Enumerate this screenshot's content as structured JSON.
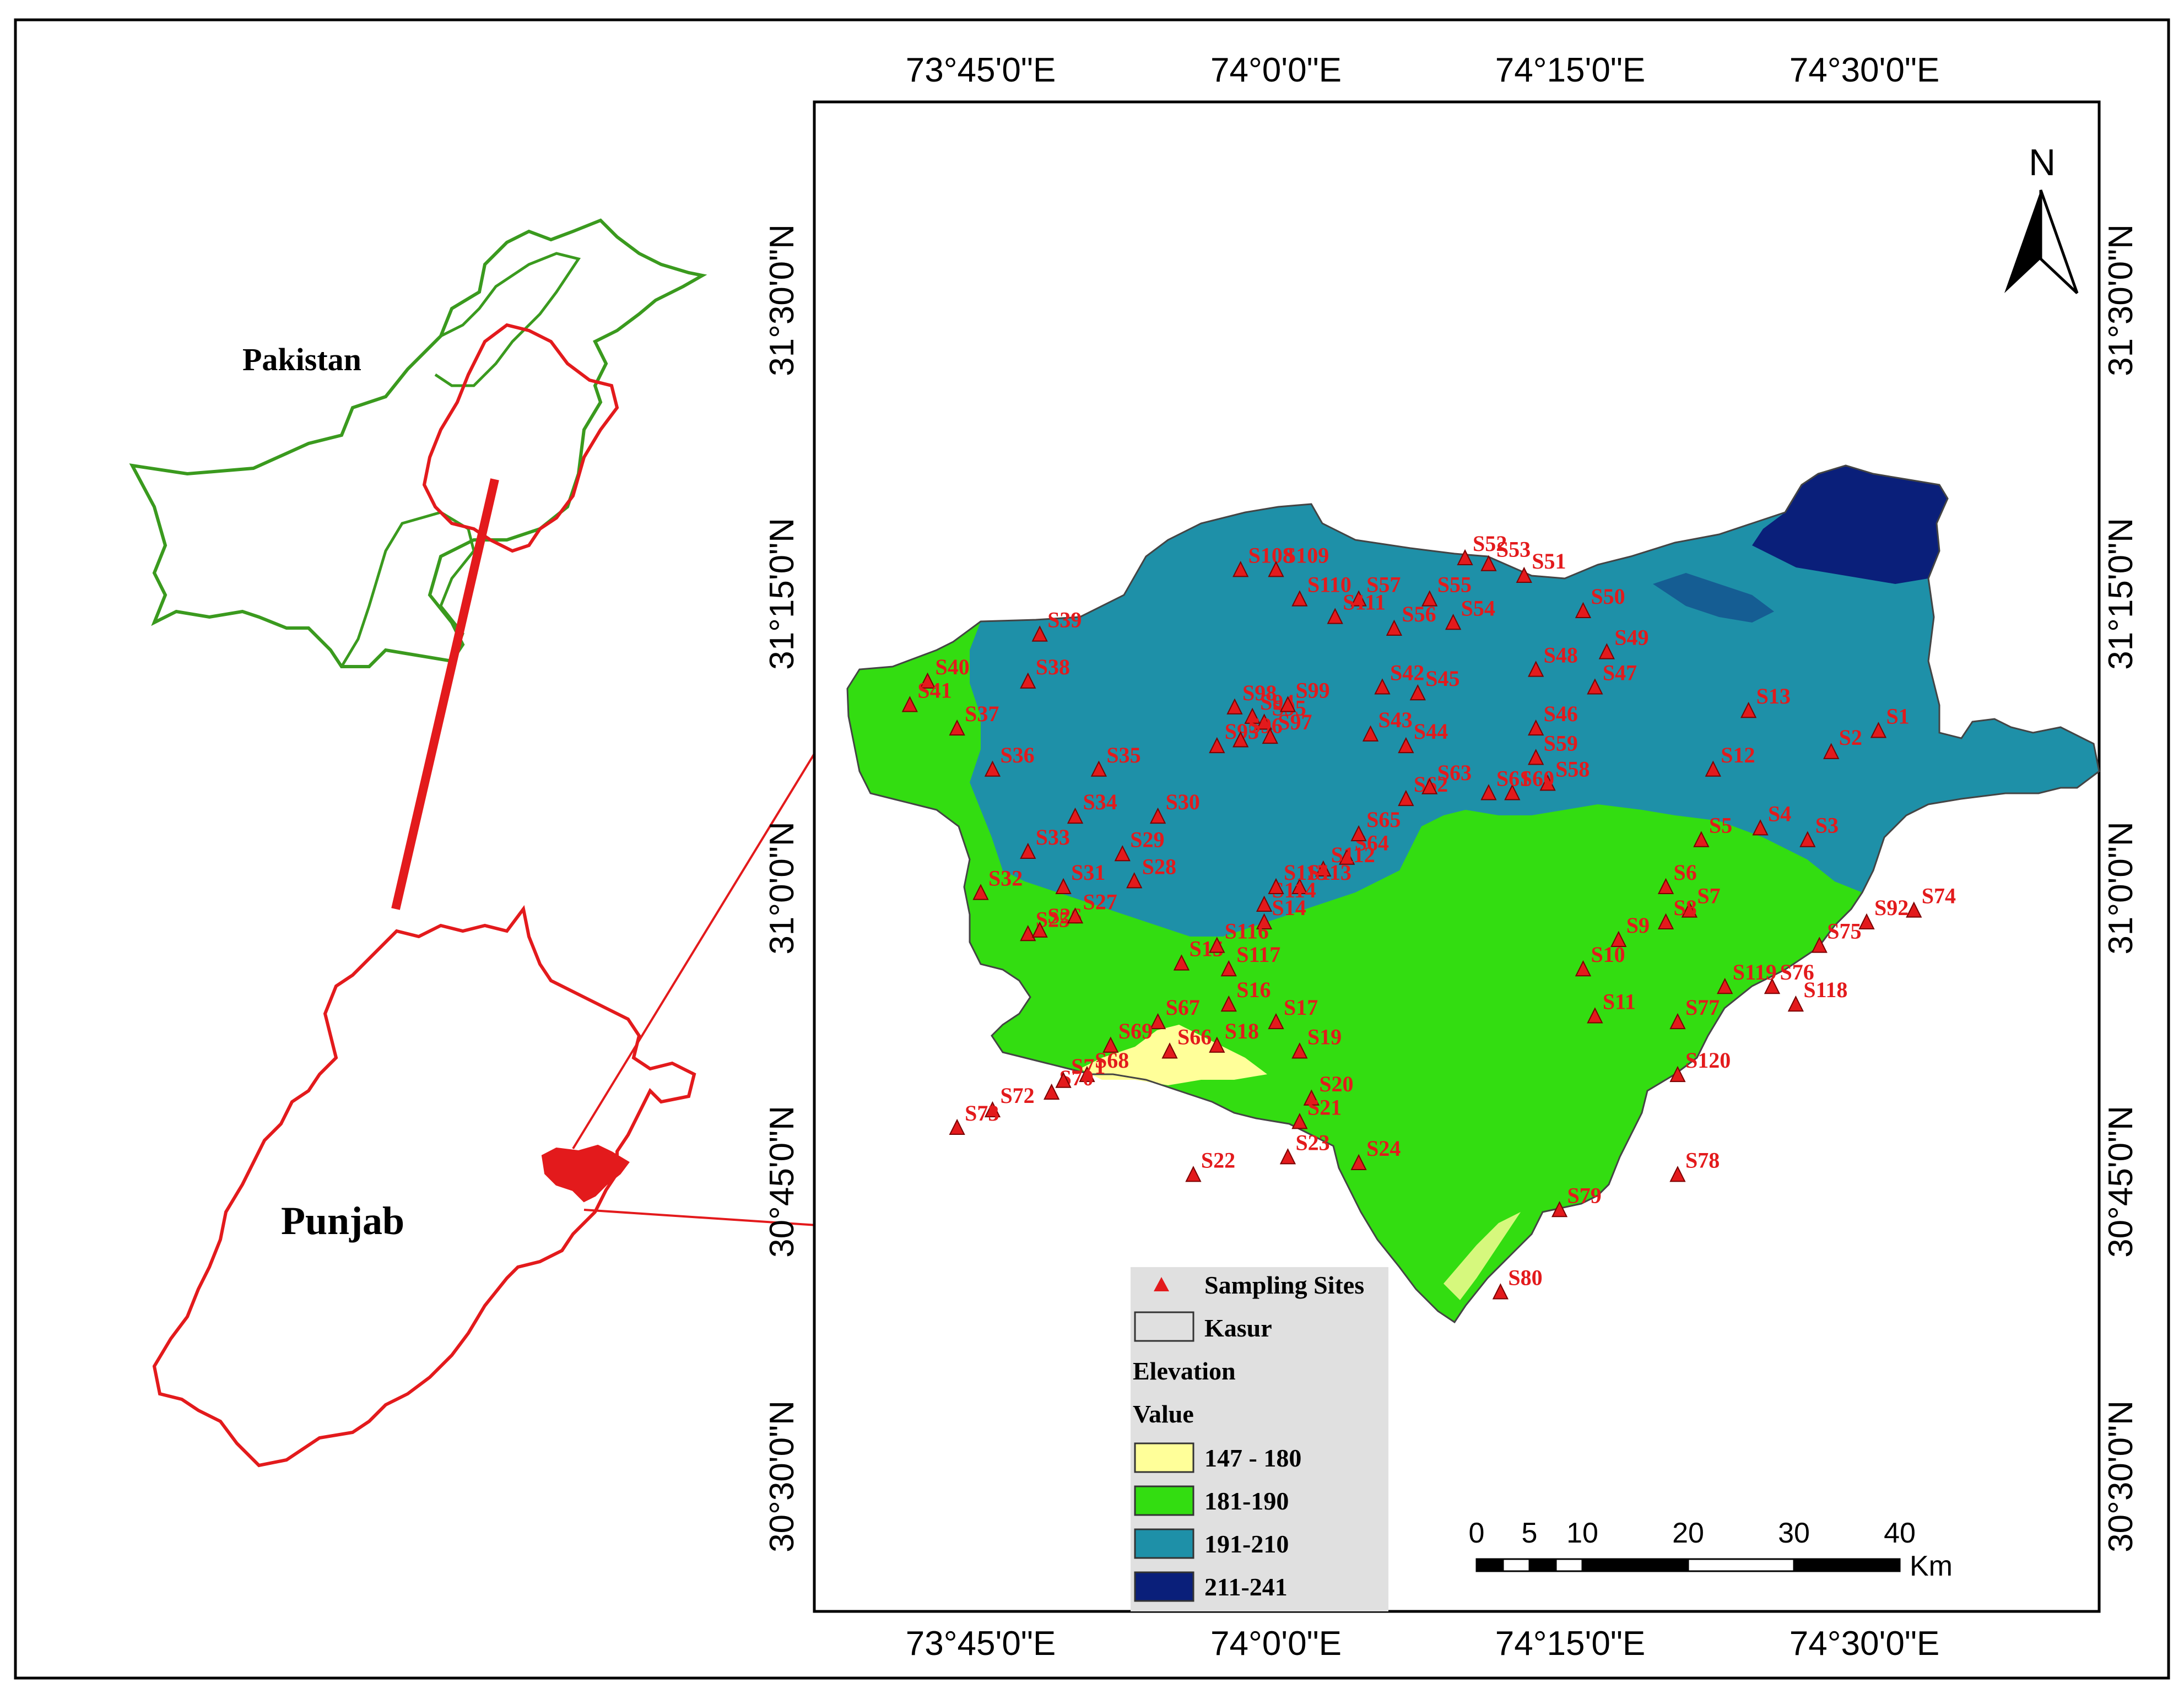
{
  "inset": {
    "country_label": "Pakistan",
    "province_label": "Punjab"
  },
  "coordinates": {
    "top": [
      "73°45'0\"E",
      "74°0'0\"E",
      "74°15'0\"E",
      "74°30'0\"E"
    ],
    "bottom": [
      "73°45'0\"E",
      "74°0'0\"E",
      "74°15'0\"E",
      "74°30'0\"E"
    ],
    "left": [
      "31°30'0\"N",
      "31°15'0\"N",
      "31°0'0\"N",
      "30°45'0\"N",
      "30°30'0\"N"
    ],
    "right": [
      "31°30'0\"N",
      "31°15'0\"N",
      "31°0'0\"N",
      "30°45'0\"N",
      "30°30'0\"N"
    ]
  },
  "north_arrow": {
    "label": "N"
  },
  "legend": {
    "sampling_sites": "Sampling Sites",
    "district": "Kasur",
    "elevation_title": "Elevation",
    "value_title": "Value",
    "classes": [
      {
        "label": "147 - 180",
        "color": "#ffff99"
      },
      {
        "label": "181-190",
        "color": "#33dd11"
      },
      {
        "label": "191-210",
        "color": "#1e90a8"
      },
      {
        "label": "211-241",
        "color": "#0a1f7a"
      }
    ]
  },
  "scale_bar": {
    "ticks": [
      "0",
      "5",
      "10",
      "20",
      "30",
      "40"
    ],
    "unit": "Km"
  },
  "colors": {
    "site_marker": "#e31a1c",
    "pakistan_outline": "#3a9a1e",
    "punjab_outline": "#e31a1c",
    "connector_line": "#e31a1c"
  },
  "sampling_sites": [
    {
      "id": "S1",
      "lon": 74.51,
      "lat": 31.133
    },
    {
      "id": "S2",
      "lon": 74.47,
      "lat": 31.115
    },
    {
      "id": "S3",
      "lon": 74.45,
      "lat": 31.04
    },
    {
      "id": "S4",
      "lon": 74.41,
      "lat": 31.05
    },
    {
      "id": "S5",
      "lon": 74.36,
      "lat": 31.04
    },
    {
      "id": "S6",
      "lon": 74.33,
      "lat": 31.0
    },
    {
      "id": "S7",
      "lon": 74.35,
      "lat": 30.98
    },
    {
      "id": "S8",
      "lon": 74.33,
      "lat": 30.97
    },
    {
      "id": "S9",
      "lon": 74.29,
      "lat": 30.955
    },
    {
      "id": "S10",
      "lon": 74.26,
      "lat": 30.93
    },
    {
      "id": "S11",
      "lon": 74.27,
      "lat": 30.89
    },
    {
      "id": "S12",
      "lon": 74.37,
      "lat": 31.1
    },
    {
      "id": "S13",
      "lon": 74.4,
      "lat": 31.15
    },
    {
      "id": "S14",
      "lon": 73.99,
      "lat": 30.97
    },
    {
      "id": "S15",
      "lon": 73.92,
      "lat": 30.935
    },
    {
      "id": "S16",
      "lon": 73.96,
      "lat": 30.9
    },
    {
      "id": "S17",
      "lon": 74.0,
      "lat": 30.885
    },
    {
      "id": "S18",
      "lon": 73.95,
      "lat": 30.865
    },
    {
      "id": "S19",
      "lon": 74.02,
      "lat": 30.86
    },
    {
      "id": "S20",
      "lon": 74.03,
      "lat": 30.82
    },
    {
      "id": "S21",
      "lon": 74.02,
      "lat": 30.8
    },
    {
      "id": "S22",
      "lon": 73.93,
      "lat": 30.755
    },
    {
      "id": "S23",
      "lon": 74.01,
      "lat": 30.77
    },
    {
      "id": "S24",
      "lon": 74.07,
      "lat": 30.765
    },
    {
      "id": "S25",
      "lon": 73.79,
      "lat": 30.96
    },
    {
      "id": "S26",
      "lon": 73.8,
      "lat": 30.963
    },
    {
      "id": "S27",
      "lon": 73.83,
      "lat": 30.975
    },
    {
      "id": "S28",
      "lon": 73.88,
      "lat": 31.005
    },
    {
      "id": "S29",
      "lon": 73.87,
      "lat": 31.028
    },
    {
      "id": "S30",
      "lon": 73.9,
      "lat": 31.06
    },
    {
      "id": "S31",
      "lon": 73.82,
      "lat": 31.0
    },
    {
      "id": "S32",
      "lon": 73.75,
      "lat": 30.995
    },
    {
      "id": "S33",
      "lon": 73.79,
      "lat": 31.03
    },
    {
      "id": "S34",
      "lon": 73.83,
      "lat": 31.06
    },
    {
      "id": "S35",
      "lon": 73.85,
      "lat": 31.1
    },
    {
      "id": "S36",
      "lon": 73.76,
      "lat": 31.1
    },
    {
      "id": "S37",
      "lon": 73.73,
      "lat": 31.135
    },
    {
      "id": "S38",
      "lon": 73.79,
      "lat": 31.175
    },
    {
      "id": "S39",
      "lon": 73.8,
      "lat": 31.215
    },
    {
      "id": "S40",
      "lon": 73.705,
      "lat": 31.175
    },
    {
      "id": "S41",
      "lon": 73.69,
      "lat": 31.155
    },
    {
      "id": "S42",
      "lon": 74.09,
      "lat": 31.17
    },
    {
      "id": "S43",
      "lon": 74.08,
      "lat": 31.13
    },
    {
      "id": "S44",
      "lon": 74.11,
      "lat": 31.12
    },
    {
      "id": "S45",
      "lon": 74.12,
      "lat": 31.165
    },
    {
      "id": "S46",
      "lon": 74.22,
      "lat": 31.135
    },
    {
      "id": "S47",
      "lon": 74.27,
      "lat": 31.17
    },
    {
      "id": "S48",
      "lon": 74.22,
      "lat": 31.185
    },
    {
      "id": "S49",
      "lon": 74.28,
      "lat": 31.2
    },
    {
      "id": "S50",
      "lon": 74.26,
      "lat": 31.235
    },
    {
      "id": "S51",
      "lon": 74.21,
      "lat": 31.265
    },
    {
      "id": "S52",
      "lon": 74.16,
      "lat": 31.28
    },
    {
      "id": "S53",
      "lon": 74.18,
      "lat": 31.275
    },
    {
      "id": "S54",
      "lon": 74.15,
      "lat": 31.225
    },
    {
      "id": "S55",
      "lon": 74.13,
      "lat": 31.245
    },
    {
      "id": "S56",
      "lon": 74.1,
      "lat": 31.22
    },
    {
      "id": "S57",
      "lon": 74.07,
      "lat": 31.245
    },
    {
      "id": "S58",
      "lon": 74.23,
      "lat": 31.088
    },
    {
      "id": "S59",
      "lon": 74.22,
      "lat": 31.11
    },
    {
      "id": "S60",
      "lon": 74.2,
      "lat": 31.08
    },
    {
      "id": "S61",
      "lon": 74.18,
      "lat": 31.08
    },
    {
      "id": "S62",
      "lon": 74.11,
      "lat": 31.075
    },
    {
      "id": "S63",
      "lon": 74.13,
      "lat": 31.085
    },
    {
      "id": "S64",
      "lon": 74.06,
      "lat": 31.025
    },
    {
      "id": "S65",
      "lon": 74.07,
      "lat": 31.045
    },
    {
      "id": "S66",
      "lon": 73.91,
      "lat": 30.86
    },
    {
      "id": "S67",
      "lon": 73.9,
      "lat": 30.885
    },
    {
      "id": "S68",
      "lon": 73.84,
      "lat": 30.84
    },
    {
      "id": "S69",
      "lon": 73.86,
      "lat": 30.865
    },
    {
      "id": "S70",
      "lon": 73.81,
      "lat": 30.825
    },
    {
      "id": "S71",
      "lon": 73.82,
      "lat": 30.835
    },
    {
      "id": "S72",
      "lon": 73.76,
      "lat": 30.81
    },
    {
      "id": "S73",
      "lon": 73.73,
      "lat": 30.795
    },
    {
      "id": "S74",
      "lon": 74.54,
      "lat": 30.98
    },
    {
      "id": "S75",
      "lon": 74.46,
      "lat": 30.95
    },
    {
      "id": "S76",
      "lon": 74.42,
      "lat": 30.915
    },
    {
      "id": "S77",
      "lon": 74.34,
      "lat": 30.885
    },
    {
      "id": "S78",
      "lon": 74.34,
      "lat": 30.755
    },
    {
      "id": "S79",
      "lon": 74.24,
      "lat": 30.725
    },
    {
      "id": "S80",
      "lon": 74.19,
      "lat": 30.655
    },
    {
      "id": "S92",
      "lon": 74.5,
      "lat": 30.97
    },
    {
      "id": "S93",
      "lon": 73.95,
      "lat": 31.12
    },
    {
      "id": "S94",
      "lon": 73.98,
      "lat": 31.145
    },
    {
      "id": "S95",
      "lon": 73.99,
      "lat": 31.14
    },
    {
      "id": "S96",
      "lon": 73.97,
      "lat": 31.125
    },
    {
      "id": "S97",
      "lon": 73.995,
      "lat": 31.128
    },
    {
      "id": "S98",
      "lon": 73.965,
      "lat": 31.153
    },
    {
      "id": "S99",
      "lon": 74.01,
      "lat": 31.155
    },
    {
      "id": "S108",
      "lon": 73.97,
      "lat": 31.27
    },
    {
      "id": "S109",
      "lon": 74.0,
      "lat": 31.27
    },
    {
      "id": "S110",
      "lon": 74.02,
      "lat": 31.245
    },
    {
      "id": "S111",
      "lon": 74.05,
      "lat": 31.23
    },
    {
      "id": "S112",
      "lon": 74.04,
      "lat": 31.015
    },
    {
      "id": "S113",
      "lon": 74.02,
      "lat": 31.0
    },
    {
      "id": "S114",
      "lon": 73.99,
      "lat": 30.985
    },
    {
      "id": "S115",
      "lon": 74.0,
      "lat": 31.0
    },
    {
      "id": "S116",
      "lon": 73.95,
      "lat": 30.95
    },
    {
      "id": "S117",
      "lon": 73.96,
      "lat": 30.93
    },
    {
      "id": "S118",
      "lon": 74.44,
      "lat": 30.9
    },
    {
      "id": "S119",
      "lon": 74.38,
      "lat": 30.915
    },
    {
      "id": "S120",
      "lon": 74.34,
      "lat": 30.84
    }
  ]
}
